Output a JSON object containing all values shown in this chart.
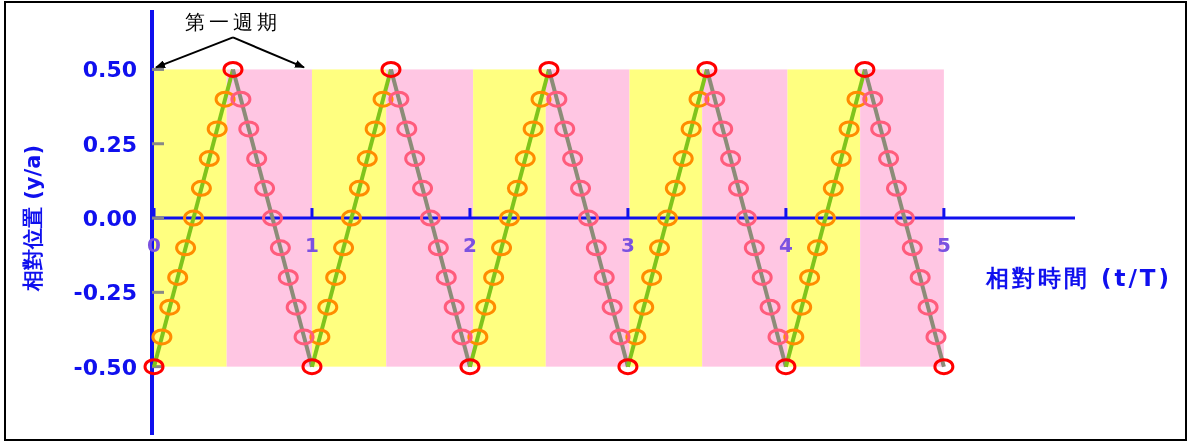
{
  "chart_data": {
    "type": "line",
    "xlabel": "相對時間 (t/T)",
    "ylabel": "相對位置 (y/a)",
    "annotations": [
      {
        "text": "第一週期",
        "x": 0.5,
        "y": 0.5
      }
    ],
    "xlim": [
      0,
      5.83
    ],
    "ylim": [
      -0.73,
      0.7
    ],
    "xticks": [
      0,
      1,
      2,
      3,
      4,
      5
    ],
    "yticks": [
      {
        "value": -0.5,
        "label": "-0.50"
      },
      {
        "value": -0.25,
        "label": "-0.25"
      },
      {
        "value": 0,
        "label": "0.00"
      },
      {
        "value": 0.25,
        "label": "0.25"
      },
      {
        "value": 0.5,
        "label": "0.50"
      }
    ],
    "bands": [
      {
        "axis": "x",
        "from": 0,
        "to": 0.46,
        "color": "#ffff80"
      },
      {
        "axis": "x",
        "from": 0.46,
        "to": 1,
        "color": "#ffc6e3"
      },
      {
        "axis": "x",
        "from": 1,
        "to": 1.47,
        "color": "#ffff80"
      },
      {
        "axis": "x",
        "from": 1.47,
        "to": 2.02,
        "color": "#ffc6e3"
      },
      {
        "axis": "x",
        "from": 2.02,
        "to": 2.48,
        "color": "#ffff80"
      },
      {
        "axis": "x",
        "from": 2.48,
        "to": 3.01,
        "color": "#ffc6e3"
      },
      {
        "axis": "x",
        "from": 3.01,
        "to": 3.47,
        "color": "#ffff80"
      },
      {
        "axis": "x",
        "from": 3.47,
        "to": 4.01,
        "color": "#ffc6e3"
      },
      {
        "axis": "x",
        "from": 4.01,
        "to": 4.47,
        "color": "#ffff80"
      },
      {
        "axis": "x",
        "from": 4.47,
        "to": 5,
        "color": "#ffc6e3"
      }
    ],
    "grid": false,
    "series": [
      {
        "type": "line",
        "color": "#7fc41c",
        "marker": "none",
        "x": [
          0,
          0.5
        ],
        "values": [
          -0.5,
          0.5
        ]
      },
      {
        "type": "line",
        "color": "#8c8c78",
        "marker": "none",
        "x": [
          0.5,
          1
        ],
        "values": [
          0.5,
          -0.5
        ]
      },
      {
        "type": "line",
        "color": "#7fc41c",
        "marker": "none",
        "x": [
          1,
          1.5
        ],
        "values": [
          -0.5,
          0.5
        ]
      },
      {
        "type": "line",
        "color": "#8c8c78",
        "marker": "none",
        "x": [
          1.5,
          2
        ],
        "values": [
          0.5,
          -0.5
        ]
      },
      {
        "type": "line",
        "color": "#7fc41c",
        "marker": "none",
        "x": [
          2,
          2.5
        ],
        "values": [
          -0.5,
          0.5
        ]
      },
      {
        "type": "line",
        "color": "#8c8c78",
        "marker": "none",
        "x": [
          2.5,
          3
        ],
        "values": [
          0.5,
          -0.5
        ]
      },
      {
        "type": "line",
        "color": "#7fc41c",
        "marker": "none",
        "x": [
          3,
          3.5
        ],
        "values": [
          -0.5,
          0.5
        ]
      },
      {
        "type": "line",
        "color": "#8c8c78",
        "marker": "none",
        "x": [
          3.5,
          4
        ],
        "values": [
          0.5,
          -0.5
        ]
      },
      {
        "type": "line",
        "color": "#7fc41c",
        "marker": "none",
        "x": [
          4,
          4.5
        ],
        "values": [
          -0.5,
          0.5
        ]
      },
      {
        "type": "line",
        "color": "#8c8c78",
        "marker": "none",
        "x": [
          4.5,
          5
        ],
        "values": [
          0.5,
          -0.5
        ]
      },
      {
        "type": "scatter",
        "color": "#ff8c00",
        "marker": "circle",
        "x": [
          0.05,
          0.1,
          0.15,
          0.2,
          0.25,
          0.3,
          0.35,
          0.4,
          0.45,
          1.05,
          1.1,
          1.15,
          1.2,
          1.25,
          1.3,
          1.35,
          1.4,
          1.45,
          2.05,
          2.1,
          2.15,
          2.2,
          2.25,
          2.3,
          2.35,
          2.4,
          2.45,
          3.05,
          3.1,
          3.15,
          3.2,
          3.25,
          3.3,
          3.35,
          3.4,
          3.45,
          4.05,
          4.1,
          4.15,
          4.2,
          4.25,
          4.3,
          4.35,
          4.4,
          4.45
        ],
        "values": [
          -0.4,
          -0.3,
          -0.2,
          -0.1,
          0,
          0.1,
          0.2,
          0.3,
          0.4,
          -0.4,
          -0.3,
          -0.2,
          -0.1,
          0,
          0.1,
          0.2,
          0.3,
          0.4,
          -0.4,
          -0.3,
          -0.2,
          -0.1,
          0,
          0.1,
          0.2,
          0.3,
          0.4,
          -0.4,
          -0.3,
          -0.2,
          -0.1,
          0,
          0.1,
          0.2,
          0.3,
          0.4,
          -0.4,
          -0.3,
          -0.2,
          -0.1,
          0,
          0.1,
          0.2,
          0.3,
          0.4
        ]
      },
      {
        "type": "scatter",
        "color": "#ff5c7c",
        "marker": "circle",
        "x": [
          0.55,
          0.6,
          0.65,
          0.7,
          0.75,
          0.8,
          0.85,
          0.9,
          0.95,
          1.55,
          1.6,
          1.65,
          1.7,
          1.75,
          1.8,
          1.85,
          1.9,
          1.95,
          2.55,
          2.6,
          2.65,
          2.7,
          2.75,
          2.8,
          2.85,
          2.9,
          2.95,
          3.55,
          3.6,
          3.65,
          3.7,
          3.75,
          3.8,
          3.85,
          3.9,
          3.95,
          4.55,
          4.6,
          4.65,
          4.7,
          4.75,
          4.8,
          4.85,
          4.9,
          4.95
        ],
        "values": [
          0.4,
          0.3,
          0.2,
          0.1,
          0,
          -0.1,
          -0.2,
          -0.3,
          -0.4,
          0.4,
          0.3,
          0.2,
          0.1,
          0,
          -0.1,
          -0.2,
          -0.3,
          -0.4,
          0.4,
          0.3,
          0.2,
          0.1,
          0,
          -0.1,
          -0.2,
          -0.3,
          -0.4,
          0.4,
          0.3,
          0.2,
          0.1,
          0,
          -0.1,
          -0.2,
          -0.3,
          -0.4,
          0.4,
          0.3,
          0.2,
          0.1,
          0,
          -0.1,
          -0.2,
          -0.3,
          -0.4
        ]
      },
      {
        "type": "scatter",
        "color": "#ff0000",
        "marker": "circle",
        "x": [
          0,
          0.5,
          1,
          1.5,
          2,
          2.5,
          3,
          3.5,
          4,
          4.5,
          5
        ],
        "values": [
          -0.5,
          0.5,
          -0.5,
          0.5,
          -0.5,
          0.5,
          -0.5,
          0.5,
          -0.5,
          0.5,
          -0.5
        ]
      }
    ]
  }
}
